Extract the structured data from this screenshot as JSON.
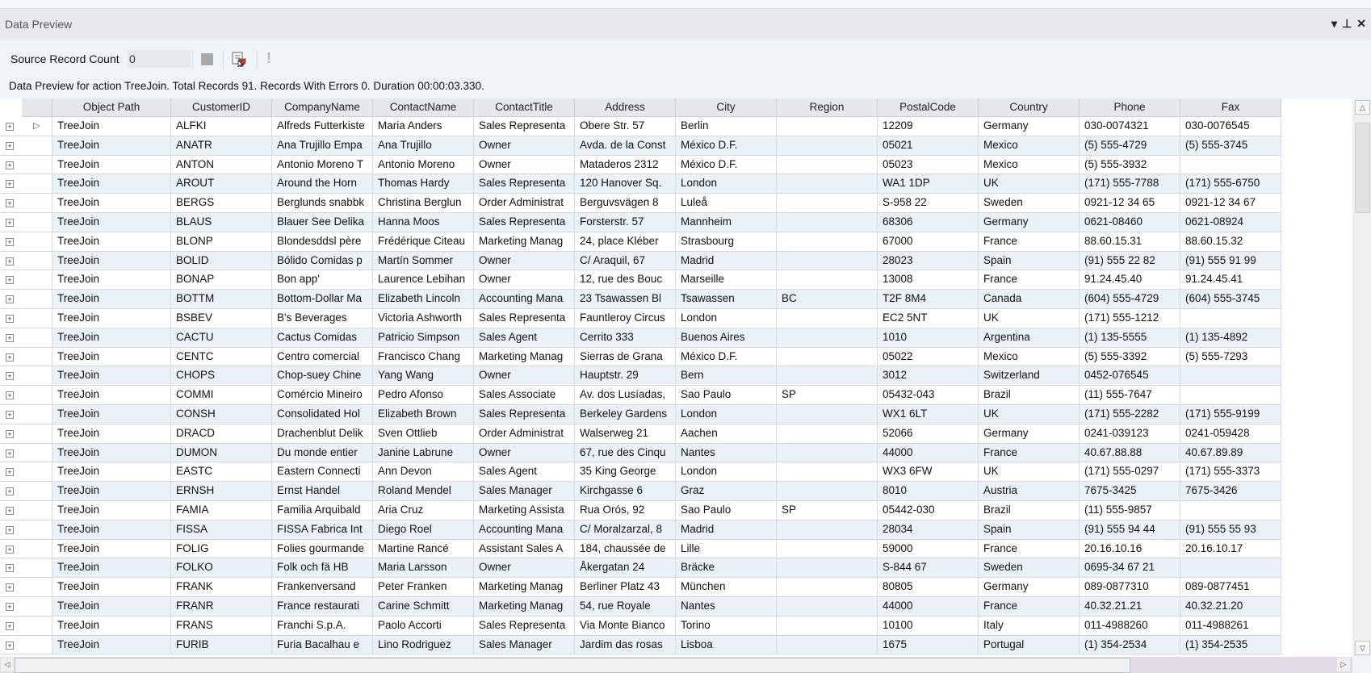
{
  "panel": {
    "title": "Data Preview",
    "buttons": {
      "dropdown": "▾",
      "pin": "⊥",
      "close": "✕"
    }
  },
  "toolbar": {
    "source_record_count_label": "Source Record Count",
    "source_record_count_value": "0",
    "icons": [
      "stop-icon",
      "preview-icon",
      "warning-icon"
    ]
  },
  "status": {
    "message": "Data Preview for action TreeJoin. Total Records 91. Records With Errors 0. Duration 00:00:03.330."
  },
  "grid": {
    "columns": [
      "Object Path",
      "CustomerID",
      "CompanyName",
      "ContactName",
      "ContactTitle",
      "Address",
      "City",
      "Region",
      "PostalCode",
      "Country",
      "Phone",
      "Fax"
    ],
    "rows": [
      [
        "TreeJoin",
        "ALFKI",
        "Alfreds Futterkiste",
        "Maria Anders",
        "Sales Representa",
        "Obere Str. 57",
        "Berlin",
        "",
        "12209",
        "Germany",
        "030-0074321",
        "030-0076545"
      ],
      [
        "TreeJoin",
        "ANATR",
        "Ana Trujillo Empa",
        "Ana Trujillo",
        "Owner",
        "Avda. de la Const",
        "México D.F.",
        "",
        "05021",
        "Mexico",
        "(5) 555-4729",
        "(5) 555-3745"
      ],
      [
        "TreeJoin",
        "ANTON",
        "Antonio Moreno T",
        "Antonio Moreno",
        "Owner",
        "Mataderos  2312",
        "México D.F.",
        "",
        "05023",
        "Mexico",
        "(5) 555-3932",
        ""
      ],
      [
        "TreeJoin",
        "AROUT",
        "Around the Horn",
        "Thomas Hardy",
        "Sales Representa",
        "120 Hanover Sq.",
        "London",
        "",
        "WA1 1DP",
        "UK",
        "(171) 555-7788",
        "(171) 555-6750"
      ],
      [
        "TreeJoin",
        "BERGS",
        "Berglunds snabbk",
        "Christina Berglun",
        "Order Administrat",
        "Berguvsvägen  8",
        "Luleå",
        "",
        "S-958 22",
        "Sweden",
        "0921-12 34 65",
        "0921-12 34 67"
      ],
      [
        "TreeJoin",
        "BLAUS",
        "Blauer See Delika",
        "Hanna Moos",
        "Sales Representa",
        "Forsterstr. 57",
        "Mannheim",
        "",
        "68306",
        "Germany",
        "0621-08460",
        "0621-08924"
      ],
      [
        "TreeJoin",
        "BLONP",
        "Blondesddsl père",
        "Frédérique Citeau",
        "Marketing Manag",
        "24, place Kléber",
        "Strasbourg",
        "",
        "67000",
        "France",
        "88.60.15.31",
        "88.60.15.32"
      ],
      [
        "TreeJoin",
        "BOLID",
        "Bólido Comidas p",
        "Martín Sommer",
        "Owner",
        "C/ Araquil, 67",
        "Madrid",
        "",
        "28023",
        "Spain",
        "(91) 555 22 82",
        "(91) 555 91 99"
      ],
      [
        "TreeJoin",
        "BONAP",
        "Bon app'",
        "Laurence Lebihan",
        "Owner",
        "12, rue des Bouc",
        "Marseille",
        "",
        "13008",
        "France",
        "91.24.45.40",
        "91.24.45.41"
      ],
      [
        "TreeJoin",
        "BOTTM",
        "Bottom-Dollar Ma",
        "Elizabeth Lincoln",
        "Accounting Mana",
        "23 Tsawassen Bl",
        "Tsawassen",
        "BC",
        "T2F 8M4",
        "Canada",
        "(604) 555-4729",
        "(604) 555-3745"
      ],
      [
        "TreeJoin",
        "BSBEV",
        "B's Beverages",
        "Victoria Ashworth",
        "Sales Representa",
        "Fauntleroy Circus",
        "London",
        "",
        "EC2 5NT",
        "UK",
        "(171) 555-1212",
        ""
      ],
      [
        "TreeJoin",
        "CACTU",
        "Cactus Comidas",
        "Patricio Simpson",
        "Sales Agent",
        "Cerrito 333",
        "Buenos Aires",
        "",
        "1010",
        "Argentina",
        "(1) 135-5555",
        "(1) 135-4892"
      ],
      [
        "TreeJoin",
        "CENTC",
        "Centro comercial",
        "Francisco Chang",
        "Marketing Manag",
        "Sierras de Grana",
        "México D.F.",
        "",
        "05022",
        "Mexico",
        "(5) 555-3392",
        "(5) 555-7293"
      ],
      [
        "TreeJoin",
        "CHOPS",
        "Chop-suey Chine",
        "Yang Wang",
        "Owner",
        "Hauptstr. 29",
        "Bern",
        "",
        "3012",
        "Switzerland",
        "0452-076545",
        ""
      ],
      [
        "TreeJoin",
        "COMMI",
        "Comércio Mineiro",
        "Pedro Afonso",
        "Sales Associate",
        "Av. dos Lusíadas,",
        "Sao Paulo",
        "SP",
        "05432-043",
        "Brazil",
        "(11) 555-7647",
        ""
      ],
      [
        "TreeJoin",
        "CONSH",
        "Consolidated Hol",
        "Elizabeth Brown",
        "Sales Representa",
        "Berkeley Gardens",
        "London",
        "",
        "WX1 6LT",
        "UK",
        "(171) 555-2282",
        "(171) 555-9199"
      ],
      [
        "TreeJoin",
        "DRACD",
        "Drachenblut Delik",
        "Sven Ottlieb",
        "Order Administrat",
        "Walserweg 21",
        "Aachen",
        "",
        "52066",
        "Germany",
        "0241-039123",
        "0241-059428"
      ],
      [
        "TreeJoin",
        "DUMON",
        "Du monde entier",
        "Janine Labrune",
        "Owner",
        "67, rue des Cinqu",
        "Nantes",
        "",
        "44000",
        "France",
        "40.67.88.88",
        "40.67.89.89"
      ],
      [
        "TreeJoin",
        "EASTC",
        "Eastern Connecti",
        "Ann Devon",
        "Sales Agent",
        "35 King George",
        "London",
        "",
        "WX3 6FW",
        "UK",
        "(171) 555-0297",
        "(171) 555-3373"
      ],
      [
        "TreeJoin",
        "ERNSH",
        "Ernst Handel",
        "Roland Mendel",
        "Sales Manager",
        "Kirchgasse 6",
        "Graz",
        "",
        "8010",
        "Austria",
        "7675-3425",
        "7675-3426"
      ],
      [
        "TreeJoin",
        "FAMIA",
        "Familia Arquibald",
        "Aria Cruz",
        "Marketing Assista",
        "Rua Orós, 92",
        "Sao Paulo",
        "SP",
        "05442-030",
        "Brazil",
        "(11) 555-9857",
        ""
      ],
      [
        "TreeJoin",
        "FISSA",
        "FISSA Fabrica Int",
        "Diego Roel",
        "Accounting Mana",
        "C/ Moralzarzal, 8",
        "Madrid",
        "",
        "28034",
        "Spain",
        "(91) 555 94 44",
        "(91) 555 55 93"
      ],
      [
        "TreeJoin",
        "FOLIG",
        "Folies gourmande",
        "Martine Rancé",
        "Assistant Sales A",
        "184, chaussée de",
        "Lille",
        "",
        "59000",
        "France",
        "20.16.10.16",
        "20.16.10.17"
      ],
      [
        "TreeJoin",
        "FOLKO",
        "Folk och fä HB",
        "Maria Larsson",
        "Owner",
        "Åkergatan 24",
        "Bräcke",
        "",
        "S-844 67",
        "Sweden",
        "0695-34 67 21",
        ""
      ],
      [
        "TreeJoin",
        "FRANK",
        "Frankenversand",
        "Peter Franken",
        "Marketing Manag",
        "Berliner Platz 43",
        "München",
        "",
        "80805",
        "Germany",
        "089-0877310",
        "089-0877451"
      ],
      [
        "TreeJoin",
        "FRANR",
        "France restaurati",
        "Carine Schmitt",
        "Marketing Manag",
        "54, rue Royale",
        "Nantes",
        "",
        "44000",
        "France",
        "40.32.21.21",
        "40.32.21.20"
      ],
      [
        "TreeJoin",
        "FRANS",
        "Franchi S.p.A.",
        "Paolo Accorti",
        "Sales Representa",
        "Via Monte Bianco",
        "Torino",
        "",
        "10100",
        "Italy",
        "011-4988260",
        "011-4988261"
      ],
      [
        "TreeJoin",
        "FURIB",
        "Furia Bacalhau e",
        "Lino Rodriguez",
        "Sales Manager",
        "Jardim das rosas",
        "Lisboa",
        "",
        "1675",
        "Portugal",
        "(1) 354-2534",
        "(1) 354-2535"
      ]
    ],
    "current_row_indicator": "▷",
    "expand_glyph": "+"
  },
  "colors": {
    "row_alt": "#eaf2f8",
    "header_bg": "#e4e8ec",
    "panel_bg": "#eef4f8"
  }
}
